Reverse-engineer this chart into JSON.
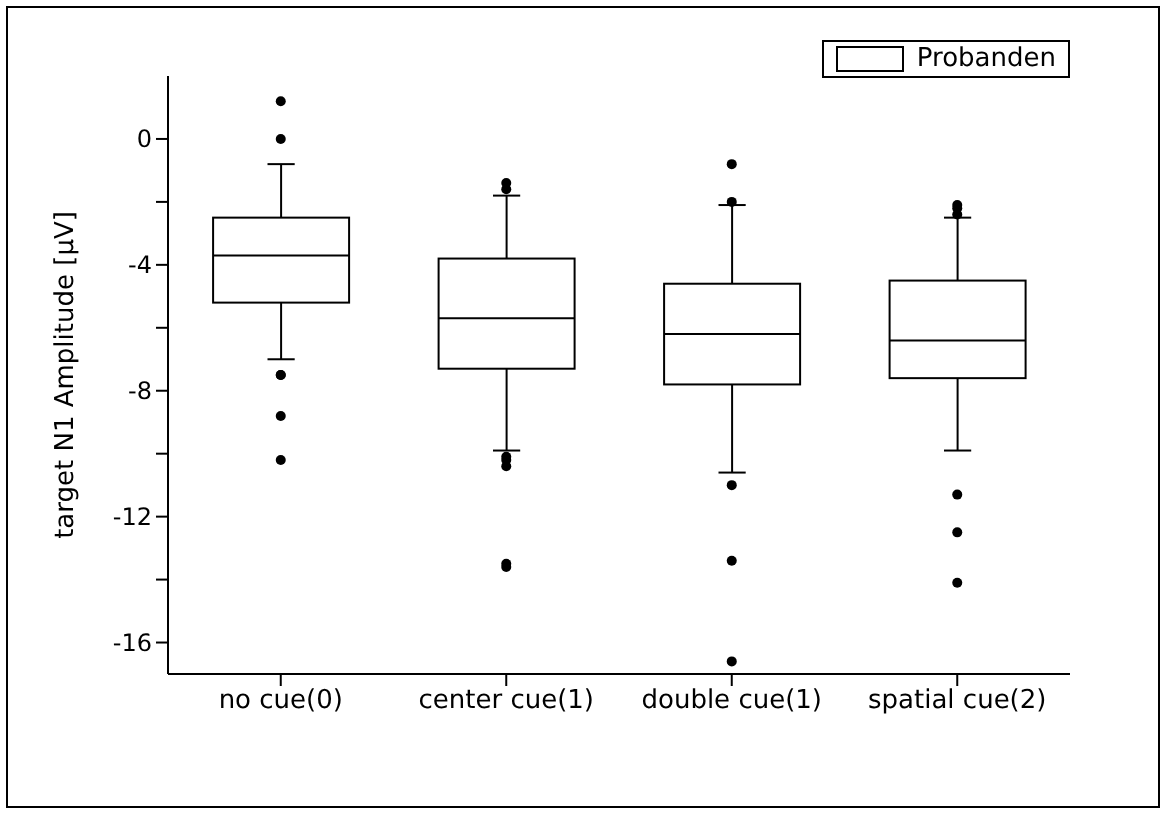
{
  "chart_data": {
    "type": "box",
    "ylabel": "target N1 Amplitude [µV]",
    "categories": [
      "no cue(0)",
      "center cue(1)",
      "double cue(1)",
      "spatial cue(2)"
    ],
    "series": [
      {
        "name": "Probanden",
        "color": "#000000",
        "boxes": [
          {
            "low": -7.0,
            "q1": -5.2,
            "median": -3.7,
            "q3": -2.5,
            "high": -0.8,
            "outliers": [
              1.2,
              0.0,
              -7.5,
              -7.5,
              -8.8,
              -10.2
            ]
          },
          {
            "low": -9.9,
            "q1": -7.3,
            "median": -5.7,
            "q3": -3.8,
            "high": -1.8,
            "outliers": [
              -1.6,
              -1.4,
              -10.1,
              -10.4,
              -10.2,
              -13.5,
              -13.6
            ]
          },
          {
            "low": -10.6,
            "q1": -7.8,
            "median": -6.2,
            "q3": -4.6,
            "high": -2.1,
            "outliers": [
              -2.0,
              -0.8,
              -11.0,
              -13.4,
              -16.6
            ]
          },
          {
            "low": -9.9,
            "q1": -7.6,
            "median": -6.4,
            "q3": -4.5,
            "high": -2.5,
            "outliers": [
              -2.2,
              -2.1,
              -2.4,
              -11.3,
              -12.5,
              -14.1
            ]
          }
        ]
      }
    ],
    "ylim": [
      -17,
      2
    ],
    "yticks": [
      0,
      {
        "value": -2,
        "label": null
      },
      -4,
      {
        "value": -6,
        "label": null
      },
      -8,
      {
        "value": -10,
        "label": null
      },
      -12,
      {
        "value": -14,
        "label": null
      },
      -16
    ],
    "legend": "top right",
    "grid": false
  }
}
